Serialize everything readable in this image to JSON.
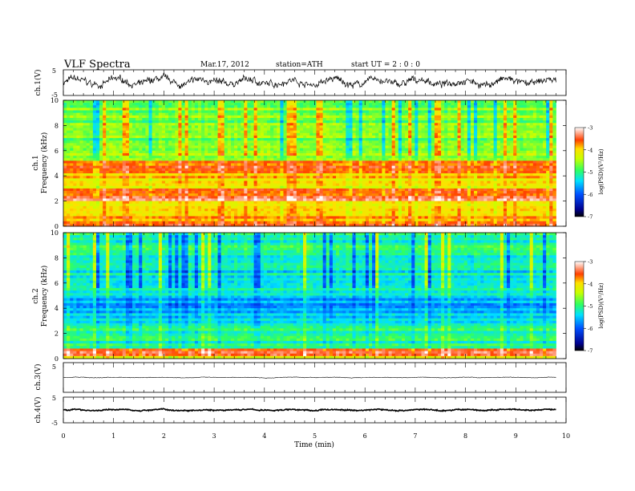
{
  "header": {
    "title": "VLF Spectra",
    "date": "Mar.17, 2012",
    "station": "station=ATH",
    "start": "start UT = 2 : 0 : 0"
  },
  "chart_data": [
    {
      "id": "ch1-waveform",
      "type": "line",
      "ylabel": "ch.1(V)",
      "ylim": [
        -5,
        5
      ],
      "yticks": [
        "5",
        "-5"
      ],
      "xlim": [
        0,
        10
      ],
      "series": [
        {
          "x_range": [
            0,
            9.8
          ],
          "mean": 0.2,
          "amplitude": 2.2
        }
      ]
    },
    {
      "id": "ch1-spectrogram",
      "type": "heatmap",
      "ylabel_top": "ch.1",
      "ylabel": "Frequency (kHz)",
      "ylim": [
        0,
        10
      ],
      "yticks": [
        "0",
        "2",
        "4",
        "6",
        "8",
        "10"
      ],
      "xlim": [
        0,
        10
      ],
      "data_x_range": [
        0,
        9.8
      ],
      "colorbar": {
        "label": "log(PSD)(V²/Hz)",
        "range": [
          -7,
          -3
        ],
        "ticks": [
          "-3",
          "-4",
          "-5",
          "-6",
          "-7"
        ]
      },
      "bands_khz_value": [
        {
          "from": 0.0,
          "to": 0.5,
          "value": -3.6
        },
        {
          "from": 0.5,
          "to": 2.0,
          "value": -3.9
        },
        {
          "from": 2.0,
          "to": 3.0,
          "value": -3.5
        },
        {
          "from": 3.0,
          "to": 4.2,
          "value": -4.0
        },
        {
          "from": 4.2,
          "to": 5.2,
          "value": -3.7
        },
        {
          "from": 5.2,
          "to": 6.5,
          "value": -4.6
        },
        {
          "from": 6.5,
          "to": 10.0,
          "value": -4.7
        }
      ]
    },
    {
      "id": "ch2-spectrogram",
      "type": "heatmap",
      "ylabel_top": "ch.2",
      "ylabel": "Frequency (kHz)",
      "ylim": [
        0,
        10
      ],
      "yticks": [
        "0",
        "2",
        "4",
        "6",
        "8",
        "10"
      ],
      "xlim": [
        0,
        10
      ],
      "data_x_range": [
        0,
        9.8
      ],
      "colorbar": {
        "label": "log(PSD)(V²/Hz)",
        "range": [
          -7,
          -3
        ],
        "ticks": [
          "-3",
          "-4",
          "-5",
          "-6",
          "-7"
        ]
      },
      "bands_khz_value": [
        {
          "from": 0.0,
          "to": 0.3,
          "value": -4.1
        },
        {
          "from": 0.3,
          "to": 0.7,
          "value": -3.4
        },
        {
          "from": 0.7,
          "to": 2.6,
          "value": -5.1
        },
        {
          "from": 2.6,
          "to": 3.6,
          "value": -5.4
        },
        {
          "from": 3.6,
          "to": 5.0,
          "value": -5.6
        },
        {
          "from": 5.0,
          "to": 7.0,
          "value": -5.3
        },
        {
          "from": 7.0,
          "to": 10.0,
          "value": -5.1
        }
      ]
    },
    {
      "id": "ch3-waveform",
      "type": "line",
      "ylabel": "ch.3(V)",
      "ylim": [
        -5,
        5
      ],
      "yticks": [
        "5"
      ],
      "xlim": [
        0,
        10
      ],
      "series": [
        {
          "x_range": [
            0,
            9.8
          ],
          "mean": 0.0,
          "amplitude": 0.15
        }
      ]
    },
    {
      "id": "ch4-waveform",
      "type": "line",
      "ylabel": "ch.4(V)",
      "ylim": [
        -5,
        5
      ],
      "yticks": [
        "5",
        "-5"
      ],
      "xlim": [
        0,
        10
      ],
      "xlabel": "Time (min)",
      "xticks": [
        "0",
        "1",
        "2",
        "3",
        "4",
        "5",
        "6",
        "7",
        "8",
        "9",
        "10"
      ],
      "series": [
        {
          "x_range": [
            0,
            9.8
          ],
          "mean": 0.0,
          "amplitude": 0.4
        }
      ]
    }
  ]
}
